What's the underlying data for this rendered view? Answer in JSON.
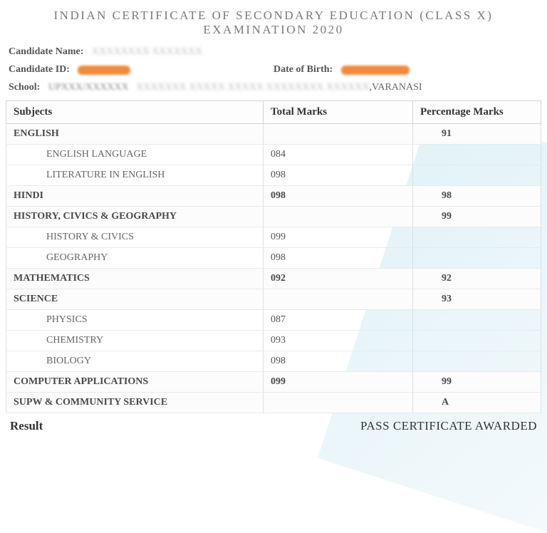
{
  "title": "INDIAN CERTIFICATE OF SECONDARY EDUCATION (CLASS X) EXAMINATION 2020",
  "labels": {
    "candidate_name": "Candidate Name:",
    "candidate_id": "Candidate ID:",
    "dob": "Date of Birth:",
    "school": "School:"
  },
  "school_suffix": ",VARANASI",
  "columns": {
    "subject": "Subjects",
    "marks": "Total Marks",
    "pct": "Percentage Marks"
  },
  "rows": [
    {
      "type": "group",
      "subject": "ENGLISH",
      "marks": "",
      "pct": "91"
    },
    {
      "type": "sub",
      "subject": "ENGLISH LANGUAGE",
      "marks": "084",
      "pct": ""
    },
    {
      "type": "sub",
      "subject": "LITERATURE IN ENGLISH",
      "marks": "098",
      "pct": ""
    },
    {
      "type": "group",
      "subject": "HINDI",
      "marks": "098",
      "pct": "98"
    },
    {
      "type": "group",
      "subject": "HISTORY, CIVICS & GEOGRAPHY",
      "marks": "",
      "pct": "99"
    },
    {
      "type": "sub",
      "subject": "HISTORY & CIVICS",
      "marks": "099",
      "pct": ""
    },
    {
      "type": "sub",
      "subject": "GEOGRAPHY",
      "marks": "098",
      "pct": ""
    },
    {
      "type": "group",
      "subject": "MATHEMATICS",
      "marks": "092",
      "pct": "92"
    },
    {
      "type": "group",
      "subject": "SCIENCE",
      "marks": "",
      "pct": "93"
    },
    {
      "type": "sub",
      "subject": "PHYSICS",
      "marks": "087",
      "pct": ""
    },
    {
      "type": "sub",
      "subject": "CHEMISTRY",
      "marks": "093",
      "pct": ""
    },
    {
      "type": "sub",
      "subject": "BIOLOGY",
      "marks": "098",
      "pct": ""
    },
    {
      "type": "group",
      "subject": "COMPUTER APPLICATIONS",
      "marks": "099",
      "pct": "99"
    },
    {
      "type": "group",
      "subject": "SUPW & COMMUNITY SERVICE",
      "marks": "",
      "pct": "A"
    }
  ],
  "result": {
    "label": "Result",
    "value": "PASS CERTIFICATE AWARDED"
  },
  "styling": {
    "title_color": "#7a7a7a",
    "title_letter_spacing": 2.5,
    "border_color": "#cfd6da",
    "row_border_color": "#e5ebee",
    "text_color": "#4a4a4a",
    "redact_color": "#f08a3c",
    "diagonal_gradient": [
      "#d8eef4",
      "#f0f8fb"
    ],
    "font_family": "Georgia, serif",
    "header_fontsize": 15,
    "body_fontsize": 14
  }
}
